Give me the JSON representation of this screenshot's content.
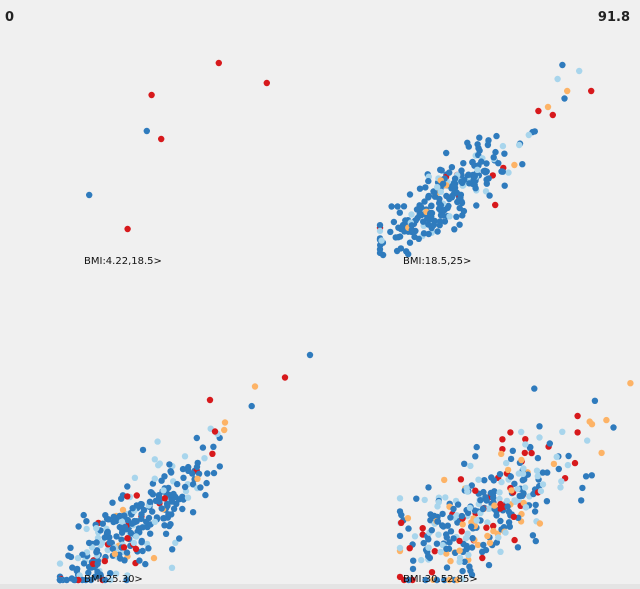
{
  "range": {
    "min": "0",
    "max": "91.8"
  },
  "colors": {
    "dark_blue": "#2f7bbd",
    "light_blue": "#a8d5ec",
    "orange": "#fdb366",
    "red": "#d7191c"
  },
  "chart_data": {
    "type": "scatter",
    "title": "",
    "xlabel": "",
    "ylabel": "",
    "xlim": [
      0,
      100
    ],
    "ylim": [
      0,
      100
    ],
    "note": "Small-multiple scatter panels by BMI group; point colors encode category (dark blue, light blue, orange, red). Cluster parameters are approximate readings of the point clouds.",
    "panels": [
      {
        "label": "BMI:4.22,18.5>",
        "points": [
          {
            "x": 62,
            "y": 96,
            "c": "red"
          },
          {
            "x": 82,
            "y": 86,
            "c": "red"
          },
          {
            "x": 34,
            "y": 80,
            "c": "red"
          },
          {
            "x": 32,
            "y": 62,
            "c": "dark_blue"
          },
          {
            "x": 38,
            "y": 58,
            "c": "red"
          },
          {
            "x": 8,
            "y": 30,
            "c": "dark_blue"
          },
          {
            "x": 24,
            "y": 13,
            "c": "red"
          }
        ]
      },
      {
        "label": "BMI:18.5,25>",
        "clusters": [
          {
            "n": 240,
            "cx": 28,
            "cy": 30,
            "spread": 14,
            "corr": 0.8,
            "mix": {
              "dark_blue": 0.82,
              "light_blue": 0.14,
              "orange": 0.02,
              "red": 0.02
            }
          }
        ],
        "points": [
          {
            "x": 74,
            "y": 88,
            "c": "light_blue"
          },
          {
            "x": 76,
            "y": 95,
            "c": "dark_blue"
          },
          {
            "x": 83,
            "y": 92,
            "c": "light_blue"
          },
          {
            "x": 88,
            "y": 82,
            "c": "red"
          },
          {
            "x": 78,
            "y": 82,
            "c": "orange"
          },
          {
            "x": 66,
            "y": 72,
            "c": "red"
          },
          {
            "x": 70,
            "y": 74,
            "c": "orange"
          },
          {
            "x": 72,
            "y": 70,
            "c": "red"
          },
          {
            "x": 62,
            "y": 60,
            "c": "light_blue"
          },
          {
            "x": 58,
            "y": 55,
            "c": "light_blue"
          },
          {
            "x": 56,
            "y": 45,
            "c": "orange"
          },
          {
            "x": 48,
            "y": 25,
            "c": "red"
          }
        ]
      },
      {
        "label": "BMI:25.30>",
        "clusters": [
          {
            "n": 300,
            "cx": 30,
            "cy": 25,
            "spread": 16,
            "corr": 0.8,
            "mix": {
              "dark_blue": 0.72,
              "light_blue": 0.18,
              "orange": 0.05,
              "red": 0.05
            }
          }
        ],
        "points": [
          {
            "x": 100,
            "y": 100,
            "c": "dark_blue"
          },
          {
            "x": 90,
            "y": 90,
            "c": "red"
          },
          {
            "x": 78,
            "y": 86,
            "c": "orange"
          },
          {
            "x": 60,
            "y": 80,
            "c": "red"
          },
          {
            "x": 66,
            "y": 70,
            "c": "orange"
          },
          {
            "x": 62,
            "y": 66,
            "c": "red"
          },
          {
            "x": 50,
            "y": 55,
            "c": "light_blue"
          },
          {
            "x": 55,
            "y": 45,
            "c": "orange"
          }
        ]
      },
      {
        "label": "BMI:30.52.85>",
        "clusters": [
          {
            "n": 330,
            "cx": 36,
            "cy": 34,
            "spread": 18,
            "corr": 0.65,
            "mix": {
              "dark_blue": 0.52,
              "light_blue": 0.28,
              "orange": 0.1,
              "red": 0.1
            }
          }
        ],
        "points": [
          {
            "x": 96,
            "y": 96,
            "c": "orange"
          },
          {
            "x": 74,
            "y": 80,
            "c": "red"
          },
          {
            "x": 80,
            "y": 76,
            "c": "orange"
          },
          {
            "x": 86,
            "y": 78,
            "c": "orange"
          },
          {
            "x": 74,
            "y": 72,
            "c": "red"
          },
          {
            "x": 78,
            "y": 68,
            "c": "light_blue"
          },
          {
            "x": 84,
            "y": 62,
            "c": "orange"
          },
          {
            "x": 46,
            "y": 72,
            "c": "red"
          },
          {
            "x": 52,
            "y": 62,
            "c": "red"
          }
        ]
      }
    ]
  }
}
